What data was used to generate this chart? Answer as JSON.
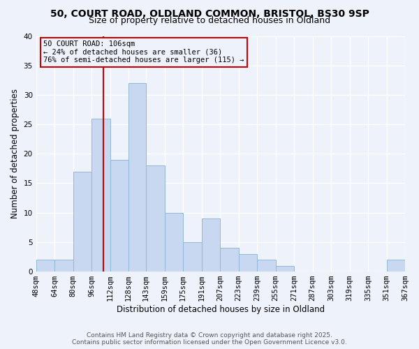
{
  "title": "50, COURT ROAD, OLDLAND COMMON, BRISTOL, BS30 9SP",
  "subtitle": "Size of property relative to detached houses in Oldland",
  "xlabel": "Distribution of detached houses by size in Oldland",
  "ylabel": "Number of detached properties",
  "bar_color": "#c8d8f0",
  "bar_edge_color": "#90b8d8",
  "background_color": "#eef2fb",
  "grid_color": "#ffffff",
  "bins": [
    48,
    64,
    80,
    96,
    112,
    128,
    143,
    159,
    175,
    191,
    207,
    223,
    239,
    255,
    271,
    287,
    303,
    319,
    335,
    351,
    367
  ],
  "bin_labels": [
    "48sqm",
    "64sqm",
    "80sqm",
    "96sqm",
    "112sqm",
    "128sqm",
    "143sqm",
    "159sqm",
    "175sqm",
    "191sqm",
    "207sqm",
    "223sqm",
    "239sqm",
    "255sqm",
    "271sqm",
    "287sqm",
    "303sqm",
    "319sqm",
    "335sqm",
    "351sqm",
    "367sqm"
  ],
  "counts": [
    2,
    2,
    17,
    26,
    19,
    32,
    18,
    10,
    5,
    9,
    4,
    3,
    2,
    1,
    0,
    0,
    0,
    0,
    0,
    2
  ],
  "ylim": [
    0,
    40
  ],
  "yticks": [
    0,
    5,
    10,
    15,
    20,
    25,
    30,
    35,
    40
  ],
  "property_value": 106,
  "property_label": "50 COURT ROAD: 106sqm",
  "annotation_line1": "← 24% of detached houses are smaller (36)",
  "annotation_line2": "76% of semi-detached houses are larger (115) →",
  "vline_color": "#cc0000",
  "annotation_box_edgecolor": "#cc0000",
  "footer1": "Contains HM Land Registry data © Crown copyright and database right 2025.",
  "footer2": "Contains public sector information licensed under the Open Government Licence v3.0.",
  "title_fontsize": 10,
  "subtitle_fontsize": 9,
  "label_fontsize": 8.5,
  "tick_fontsize": 7.5,
  "annotation_fontsize": 7.5,
  "footer_fontsize": 6.5
}
